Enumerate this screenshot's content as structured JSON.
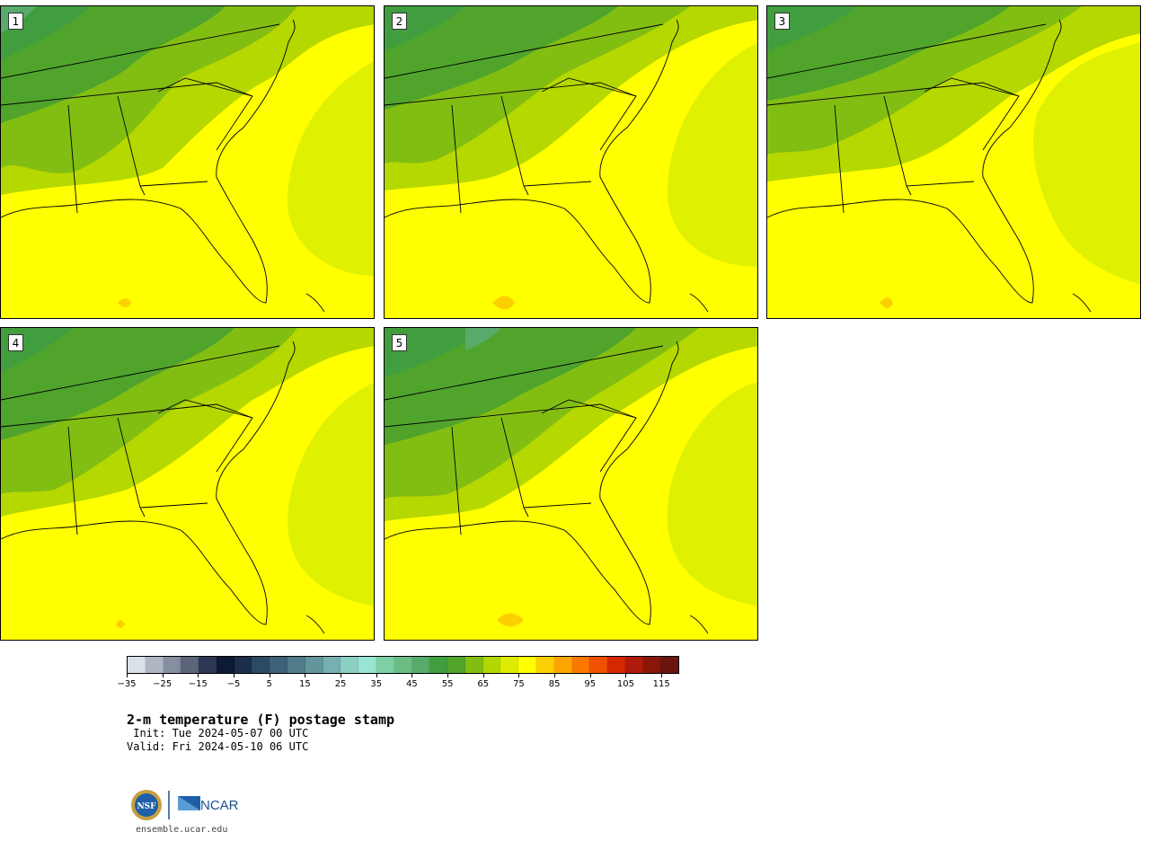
{
  "panels": [
    {
      "label": "1"
    },
    {
      "label": "2"
    },
    {
      "label": "3"
    },
    {
      "label": "4"
    },
    {
      "label": "5"
    }
  ],
  "colorbar": {
    "colors": [
      "#dbe1e8",
      "#b0b6c4",
      "#858fa0",
      "#5b6479",
      "#2d3653",
      "#0d1a33",
      "#1b2e4a",
      "#2b4a63",
      "#3d6176",
      "#517b89",
      "#62959c",
      "#76b0b0",
      "#8ccfc3",
      "#99e5d2",
      "#7dd0a6",
      "#6cbc86",
      "#58ab6a",
      "#419e3f",
      "#50a42b",
      "#82be12",
      "#b3d800",
      "#dceb00",
      "#ffff00",
      "#fcd000",
      "#fca500",
      "#fc7800",
      "#f05000",
      "#d42800",
      "#b01a0a",
      "#8a1608",
      "#6b160d"
    ],
    "tick_labels": [
      "−35",
      "−25",
      "−15",
      "−5",
      "5",
      "15",
      "25",
      "35",
      "45",
      "55",
      "65",
      "75",
      "85",
      "95",
      "105",
      "115"
    ]
  },
  "title": "2-m temperature (F) postage stamp",
  "init": " Init: Tue 2024-05-07 00 UTC",
  "valid": "Valid: Fri 2024-05-10 06 UTC",
  "footer_url": "ensemble.ucar.edu",
  "logos": {
    "nsf": "NSF",
    "ncar": "NCAR"
  }
}
